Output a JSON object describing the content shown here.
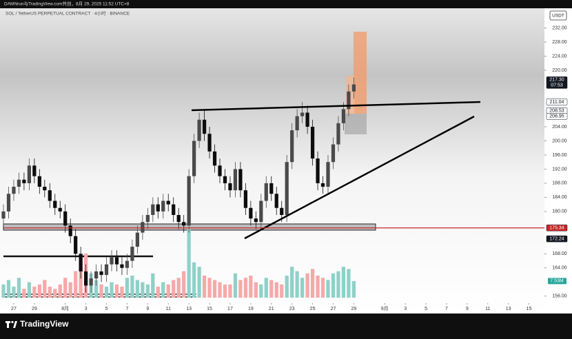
{
  "header": {
    "author": "DAMNrun与TradingView.com共创，8月 29, 2025 11:52 UTC+8",
    "brand": "TradingView"
  },
  "chart_data": {
    "type": "candlestick",
    "title": "SOL / TetherUS PERPETUAL CONTRACT · 4小时 · BINANCE",
    "currency": "USDT",
    "x": [
      -1,
      -0.5,
      0,
      0.5,
      1,
      1.5,
      2,
      2.5,
      3,
      3.5,
      4,
      4.5,
      5,
      5.5,
      6,
      6.5,
      7,
      7.5,
      8,
      8.5,
      9,
      9.5,
      10,
      10.5,
      11,
      11.5,
      12,
      12.5,
      13,
      13.5,
      14,
      14.5,
      15,
      15.5,
      16,
      16.5,
      17,
      17.5,
      18,
      18.5,
      19,
      19.5,
      20,
      20.5,
      21,
      21.5,
      22,
      22.5,
      23,
      23.5,
      24,
      24.5,
      25,
      25.5,
      26,
      26.5,
      27,
      27.5,
      28,
      28.5,
      29,
      29.5,
      30,
      30.5,
      31,
      31.5,
      32,
      32.5,
      33
    ],
    "open": [
      178,
      180,
      185,
      187,
      189,
      188,
      193,
      190,
      187,
      186,
      183,
      181,
      180,
      176,
      173,
      168,
      163,
      159,
      161,
      163,
      162,
      165,
      167,
      165,
      164,
      166,
      170,
      174,
      177,
      179,
      182,
      180,
      183,
      182,
      179,
      177,
      176,
      190,
      200,
      206,
      202,
      197,
      193,
      190,
      188,
      186,
      192,
      186,
      181,
      178,
      177,
      183,
      188,
      185,
      181,
      179,
      194,
      203,
      207,
      208,
      204,
      195,
      188,
      187,
      194,
      199,
      205,
      209,
      214
    ],
    "high": [
      182,
      187,
      189,
      191,
      191,
      195,
      195,
      192,
      189,
      188,
      185,
      183,
      182,
      178,
      175,
      170,
      165,
      163,
      165,
      165,
      167,
      169,
      169,
      167,
      168,
      172,
      176,
      179,
      181,
      184,
      184,
      185,
      185,
      184,
      181,
      179,
      192,
      202,
      208,
      209,
      204,
      199,
      195,
      192,
      190,
      194,
      194,
      188,
      183,
      180,
      185,
      190,
      190,
      187,
      183,
      196,
      205,
      209,
      211,
      210,
      206,
      197,
      190,
      196,
      201,
      207,
      211,
      216,
      218
    ],
    "low": [
      176,
      178,
      183,
      185,
      186,
      186,
      188,
      185,
      184,
      181,
      179,
      178,
      174,
      171,
      166,
      161,
      157,
      157,
      159,
      160,
      160,
      163,
      163,
      162,
      162,
      164,
      168,
      172,
      175,
      177,
      178,
      178,
      180,
      177,
      175,
      174,
      174,
      188,
      198,
      200,
      195,
      191,
      188,
      186,
      184,
      184,
      184,
      179,
      176,
      175,
      175,
      181,
      183,
      179,
      177,
      177,
      192,
      201,
      205,
      202,
      193,
      186,
      185,
      185,
      192,
      197,
      203,
      207,
      212
    ],
    "close": [
      180,
      185,
      187,
      189,
      188,
      193,
      190,
      187,
      186,
      183,
      181,
      180,
      176,
      173,
      168,
      163,
      159,
      161,
      163,
      162,
      165,
      167,
      165,
      164,
      166,
      170,
      174,
      177,
      179,
      182,
      180,
      183,
      182,
      179,
      177,
      176,
      190,
      200,
      206,
      202,
      197,
      193,
      190,
      188,
      186,
      192,
      186,
      181,
      178,
      177,
      183,
      188,
      185,
      181,
      179,
      194,
      203,
      207,
      208,
      204,
      195,
      188,
      187,
      194,
      199,
      205,
      209,
      214,
      216
    ],
    "volume": [
      6,
      8,
      5,
      9,
      4,
      7,
      5,
      6,
      8,
      5,
      4,
      6,
      9,
      7,
      12,
      14,
      20,
      11,
      8,
      6,
      5,
      7,
      6,
      5,
      9,
      10,
      8,
      7,
      6,
      11,
      5,
      7,
      6,
      8,
      9,
      12,
      31,
      16,
      14,
      10,
      9,
      8,
      7,
      6,
      6,
      11,
      8,
      9,
      10,
      7,
      6,
      9,
      8,
      7,
      6,
      10,
      14,
      12,
      9,
      11,
      13,
      10,
      9,
      8,
      11,
      12,
      14,
      13,
      7.53
    ],
    "up_color": "#4a4a4a",
    "down_color": "#0d0d0d",
    "volume_up_color": "#8fd1c8",
    "volume_down_color": "#f6a9a9",
    "xlim": [
      -1,
      51.5
    ],
    "xticks": [
      {
        "value": 0,
        "label": "27"
      },
      {
        "value": 2,
        "label": "29"
      },
      {
        "value": 5,
        "label": "8月"
      },
      {
        "value": 7,
        "label": "3"
      },
      {
        "value": 9,
        "label": "5"
      },
      {
        "value": 11,
        "label": "7"
      },
      {
        "value": 13,
        "label": "9"
      },
      {
        "value": 15,
        "label": "11"
      },
      {
        "value": 17,
        "label": "13"
      },
      {
        "value": 19,
        "label": "15"
      },
      {
        "value": 21,
        "label": "17"
      },
      {
        "value": 23,
        "label": "19"
      },
      {
        "value": 25,
        "label": "21"
      },
      {
        "value": 27,
        "label": "23"
      },
      {
        "value": 29,
        "label": "25"
      },
      {
        "value": 31,
        "label": "27"
      },
      {
        "value": 33,
        "label": "29"
      },
      {
        "value": 36,
        "label": "9月"
      },
      {
        "value": 38,
        "label": "3"
      },
      {
        "value": 40,
        "label": "5"
      },
      {
        "value": 42,
        "label": "7"
      },
      {
        "value": 44,
        "label": "9"
      },
      {
        "value": 46,
        "label": "11"
      },
      {
        "value": 48,
        "label": "13"
      },
      {
        "value": 50,
        "label": "15"
      }
    ],
    "ylim": [
      154,
      237
    ],
    "yticks": [
      {
        "value": 232,
        "label": "232.00"
      },
      {
        "value": 228,
        "label": "228.00"
      },
      {
        "value": 224,
        "label": "224.00"
      },
      {
        "value": 220,
        "label": "220.00"
      },
      {
        "value": 204,
        "label": "204.00"
      },
      {
        "value": 200,
        "label": "200.00"
      },
      {
        "value": 196,
        "label": "196.00"
      },
      {
        "value": 192,
        "label": "192.00"
      },
      {
        "value": 188,
        "label": "188.00"
      },
      {
        "value": 184,
        "label": "184.00"
      },
      {
        "value": 180,
        "label": "180.00"
      },
      {
        "value": 168,
        "label": "168.00"
      },
      {
        "value": 164,
        "label": "164.00"
      },
      {
        "value": 156,
        "label": "156.00"
      }
    ],
    "grid": false,
    "price_tags": [
      {
        "value": 217.3,
        "label": "217.30",
        "time": "07:53",
        "color": "#131722",
        "text_color": "#ffffff"
      },
      {
        "value": 211.04,
        "label": "211.04",
        "color": "#ffffff",
        "text_color": "#131722"
      },
      {
        "value": 208.53,
        "label": "208.53",
        "color": "#ffffff",
        "text_color": "#131722"
      },
      {
        "value": 206.95,
        "label": "206.95",
        "color": "#ffffff",
        "text_color": "#131722"
      },
      {
        "value": 175.34,
        "label": "175.34",
        "color": "#c62828",
        "text_color": "#ffffff",
        "line": true
      },
      {
        "value": 172.24,
        "label": "172.24",
        "color": "#131722",
        "text_color": "#ffffff"
      }
    ],
    "volume_tag": {
      "value": 7.53,
      "label": "7.53M",
      "color": "#26a69a"
    }
  }
}
